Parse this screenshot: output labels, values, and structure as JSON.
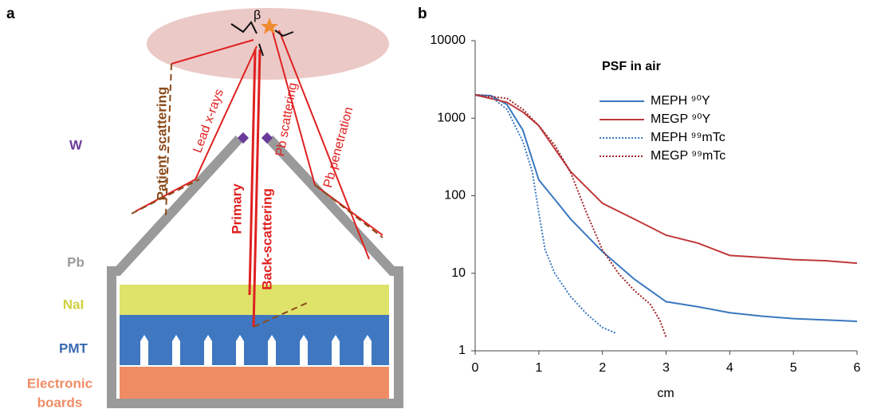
{
  "diagram": {
    "panel_label": "a",
    "beta": "β",
    "labels": {
      "w": "W",
      "pb": "Pb",
      "nai": "NaI",
      "pmt": "PMT",
      "electronic_boards": [
        "Electronic",
        "boards"
      ]
    },
    "paths": {
      "patient_scattering": "Patient scattering",
      "lead_xrays": "Lead x-rays",
      "primary": "Primary",
      "back_scattering": "Back-scattering",
      "pb_scattering": "Pb scattering",
      "pb_penetration": "Pb penetration"
    }
  },
  "chart_data": {
    "type": "line",
    "panel_label": "b",
    "title": "PSF in air",
    "x_label": "cm",
    "log_y": true,
    "xlim": [
      0,
      6
    ],
    "xticks": [
      0,
      1,
      2,
      3,
      4,
      5,
      6
    ],
    "ylim": [
      1,
      10000
    ],
    "yticks": [
      1,
      10,
      100,
      1000,
      10000
    ],
    "series": [
      {
        "name": "MEPH ⁹⁰Y",
        "color": "#3a78c0",
        "dash": false,
        "x": [
          0,
          0.25,
          0.5,
          0.75,
          1,
          1.25,
          1.5,
          2,
          2.5,
          3,
          3.5,
          4,
          4.5,
          5,
          5.5,
          6
        ],
        "values": [
          2000,
          1950,
          1500,
          700,
          160,
          90,
          50,
          19,
          8.4,
          4.3,
          3.7,
          3.1,
          2.8,
          2.6,
          2.5,
          2.4
        ]
      },
      {
        "name": "MEGP ⁹⁰Y",
        "color": "#c0393b",
        "dash": false,
        "x": [
          0,
          0.5,
          0.75,
          1,
          1.5,
          2,
          2.5,
          3,
          3.5,
          4,
          4.5,
          5,
          5.5,
          6
        ],
        "values": [
          2000,
          1600,
          1200,
          800,
          205,
          80,
          50,
          31,
          24.5,
          17,
          16,
          15,
          14.5,
          13.5
        ]
      },
      {
        "name": "MEPH ⁹⁹mTc",
        "color": "#3a78c0",
        "dash": true,
        "x": [
          0,
          0.25,
          0.5,
          0.75,
          0.9,
          1,
          1.1,
          1.25,
          1.5,
          1.75,
          2,
          2.2
        ],
        "values": [
          2000,
          1900,
          1300,
          500,
          200,
          60,
          20,
          10,
          5,
          3,
          2,
          1.7
        ]
      },
      {
        "name": "MEGP ⁹⁹mTc",
        "color": "#a0262a",
        "dash": true,
        "x": [
          0,
          0.5,
          0.75,
          1,
          1.25,
          1.5,
          1.75,
          2,
          2.25,
          2.5,
          2.75,
          2.9,
          3
        ],
        "values": [
          2000,
          1800,
          1300,
          800,
          450,
          200,
          60,
          20,
          10,
          6,
          4,
          2.5,
          1.5
        ]
      }
    ]
  }
}
